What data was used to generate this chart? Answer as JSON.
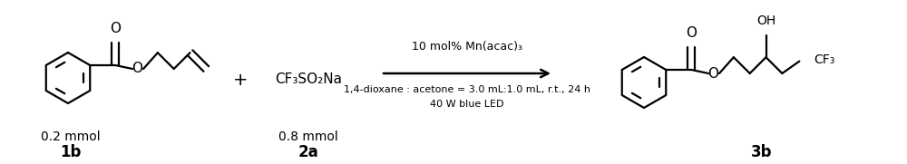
{
  "bg_color": "#ffffff",
  "fig_width": 10.0,
  "fig_height": 1.81,
  "dpi": 100,
  "text_color": "#000000",
  "reagent_line1": "10 mol% Mn(acac)₃",
  "reagent_line2": "1,4-dioxane : acetone = 3.0 mL:1.0 mL, r.t., 24 h",
  "reagent_line3": "40 W blue LED",
  "plus_sign": "+",
  "reactant2_formula": "CF₃SO₂Na",
  "compound1_label": "0.2 mmol",
  "compound2_label": "0.8 mmol",
  "compound1_id": "1b",
  "compound2_id": "2a",
  "compound3_id": "3b"
}
